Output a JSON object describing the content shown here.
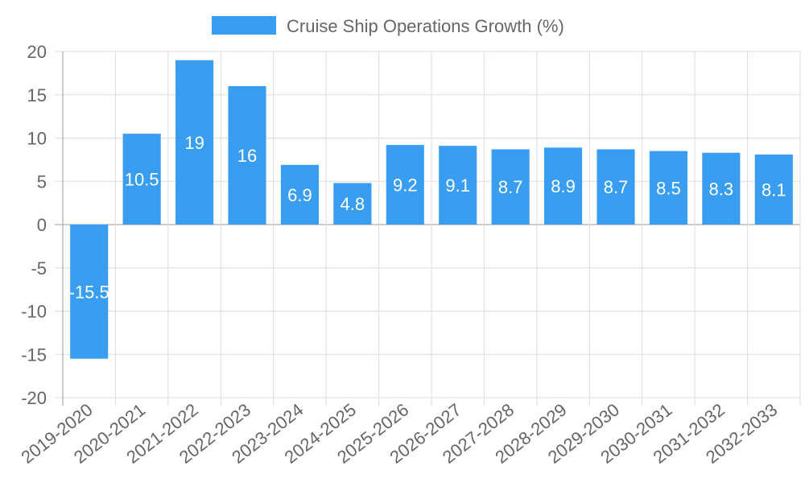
{
  "chart_data": {
    "type": "bar",
    "title": "",
    "xlabel": "",
    "ylabel": "",
    "categories": [
      "2019-2020",
      "2020-2021",
      "2021-2022",
      "2022-2023",
      "2023-2024",
      "2024-2025",
      "2025-2026",
      "2026-2027",
      "2027-2028",
      "2028-2029",
      "2029-2030",
      "2030-2031",
      "2031-2032",
      "2032-2033"
    ],
    "series": [
      {
        "name": "Cruise Ship Operations Growth (%)",
        "values": [
          -15.5,
          10.5,
          19,
          16,
          6.9,
          4.8,
          9.2,
          9.1,
          8.7,
          8.9,
          8.7,
          8.5,
          8.3,
          8.1
        ]
      }
    ],
    "ylim": [
      -20,
      20
    ],
    "yticks": [
      "20",
      "15",
      "10",
      "5",
      "0",
      "-5",
      "-10",
      "-15",
      "-20"
    ],
    "data_labels": [
      "-15.5",
      "10.5",
      "19",
      "16",
      "6.9",
      "4.8",
      "9.2",
      "9.1",
      "8.7",
      "8.9",
      "8.7",
      "8.5",
      "8.3",
      "8.1"
    ],
    "grid": true,
    "legend": "top-center",
    "colors": {
      "bar": "#399ef1",
      "grid": "#dddddd",
      "axis": "#999999",
      "tick_text": "#666666",
      "label_text": "#ffffff"
    }
  }
}
